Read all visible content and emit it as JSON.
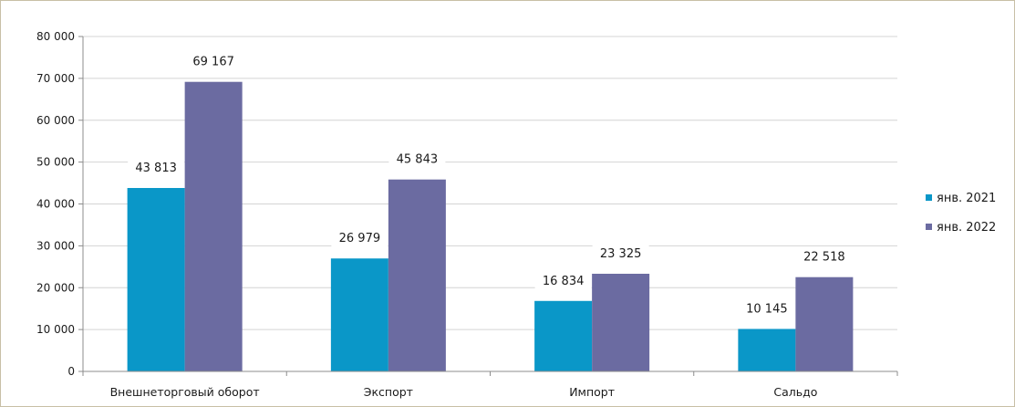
{
  "chart_data": {
    "type": "bar",
    "categories": [
      "Внешнеторговый оборот",
      "Экспорт",
      "Импорт",
      "Сальдо"
    ],
    "series": [
      {
        "name": "янв. 2021",
        "values": [
          43813,
          26979,
          16834,
          10145
        ],
        "color": "#0a97c8",
        "labels": [
          "43 813",
          "26 979",
          "16 834",
          "10 145"
        ]
      },
      {
        "name": "янв. 2022",
        "values": [
          69167,
          45843,
          23325,
          22518
        ],
        "color": "#6b6ba1",
        "labels": [
          "69 167",
          "45 843",
          "23 325",
          "22 518"
        ]
      }
    ],
    "y_ticks": [
      0,
      10000,
      20000,
      30000,
      40000,
      50000,
      60000,
      70000,
      80000
    ],
    "y_tick_labels": [
      "0",
      "10 000",
      "20 000",
      "30 000",
      "40 000",
      "50 000",
      "60 000",
      "70 000",
      "80 000"
    ],
    "ylim": [
      0,
      80000
    ],
    "grid": true,
    "legend_position": "right"
  }
}
